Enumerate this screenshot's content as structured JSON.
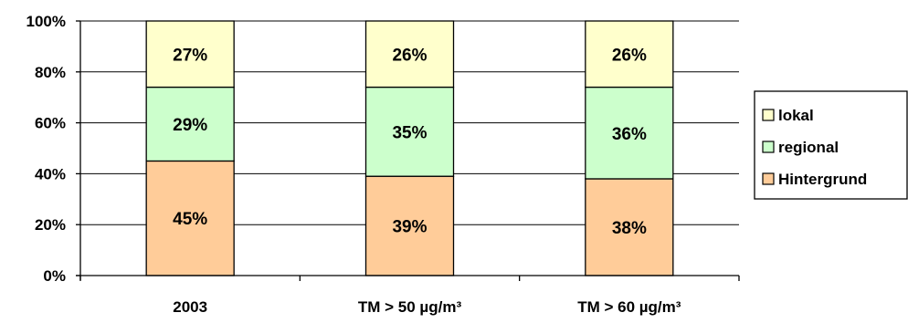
{
  "chart_data": {
    "type": "bar",
    "stacked": true,
    "normalized": true,
    "categories": [
      "2003",
      "TM > 50 µg/m³",
      "TM > 60 µg/m³"
    ],
    "series": [
      {
        "name": "Hintergrund",
        "values": [
          45,
          39,
          38
        ],
        "labels": [
          "45%",
          "39%",
          "38%"
        ],
        "color": "#FFCC99"
      },
      {
        "name": "regional",
        "values": [
          29,
          35,
          36
        ],
        "labels": [
          "29%",
          "35%",
          "36%"
        ],
        "color": "#CCFFCC"
      },
      {
        "name": "lokal",
        "values": [
          27,
          26,
          26
        ],
        "labels": [
          "27%",
          "26%",
          "26%"
        ],
        "color": "#FFFFCC"
      }
    ],
    "ylim": [
      0,
      100
    ],
    "yticks": [
      "0%",
      "20%",
      "40%",
      "60%",
      "80%",
      "100%"
    ],
    "grid": true,
    "legend": {
      "position": "right",
      "order": [
        "lokal",
        "regional",
        "Hintergrund"
      ]
    }
  }
}
